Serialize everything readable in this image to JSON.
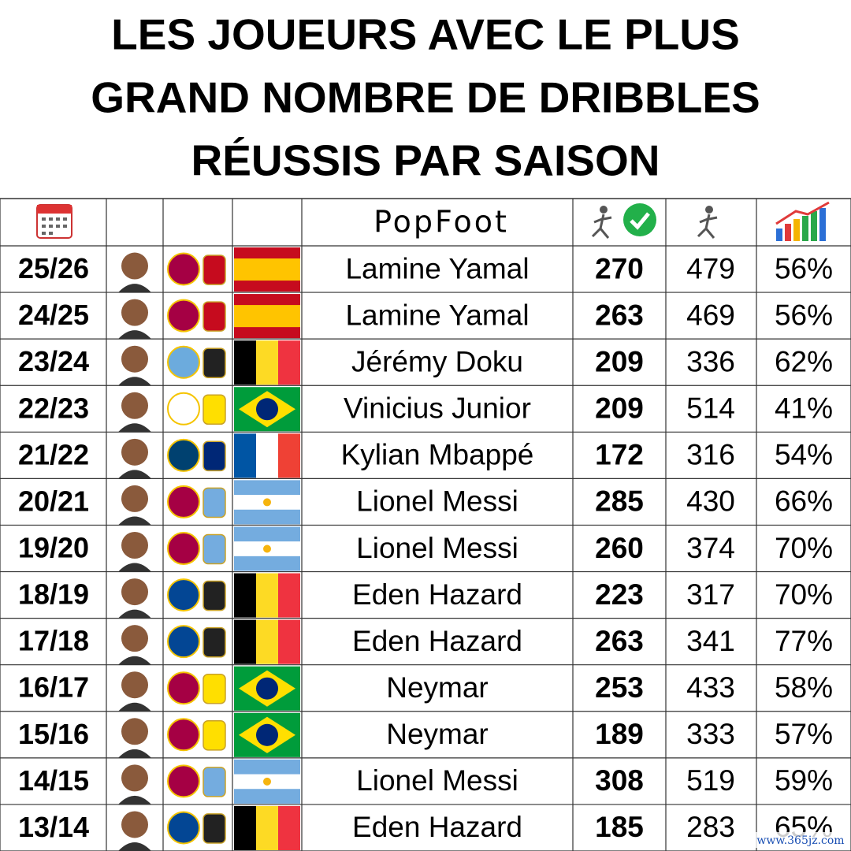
{
  "header": {
    "title": [
      "LES JOUEURS AVEC LE PLUS",
      "GRAND NOMBRE DE DRIBBLES",
      "RÉUSSIS PAR SAISON"
    ],
    "brand": "PopFoot"
  },
  "table": {
    "rows": [
      [
        "25/26",
        "Lamine Yamal",
        270,
        479,
        "56%"
      ],
      [
        "24/25",
        "Lamine Yamal",
        263,
        469,
        "56%"
      ],
      [
        "23/24",
        "Jérémy Doku",
        209,
        336,
        "62%"
      ],
      [
        "22/23",
        "Vinicius Junior",
        209,
        514,
        "41%"
      ],
      [
        "21/22",
        "Kylian Mbappé",
        172,
        316,
        "54%"
      ],
      [
        "20/21",
        "Lionel Messi",
        285,
        430,
        "66%"
      ],
      [
        "19/20",
        "Lionel Messi",
        260,
        374,
        "70%"
      ],
      [
        "18/19",
        "Eden Hazard",
        223,
        317,
        "70%"
      ],
      [
        "17/18",
        "Eden Hazard",
        263,
        341,
        "77%"
      ],
      [
        "16/17",
        "Neymar",
        253,
        433,
        "58%"
      ],
      [
        "15/16",
        "Neymar",
        189,
        333,
        "57%"
      ],
      [
        "14/15",
        "Lionel Messi",
        308,
        519,
        "59%"
      ],
      [
        "13/14",
        "Eden Hazard",
        185,
        283,
        "65%"
      ]
    ]
  },
  "watermark": "www.365jz.com"
}
